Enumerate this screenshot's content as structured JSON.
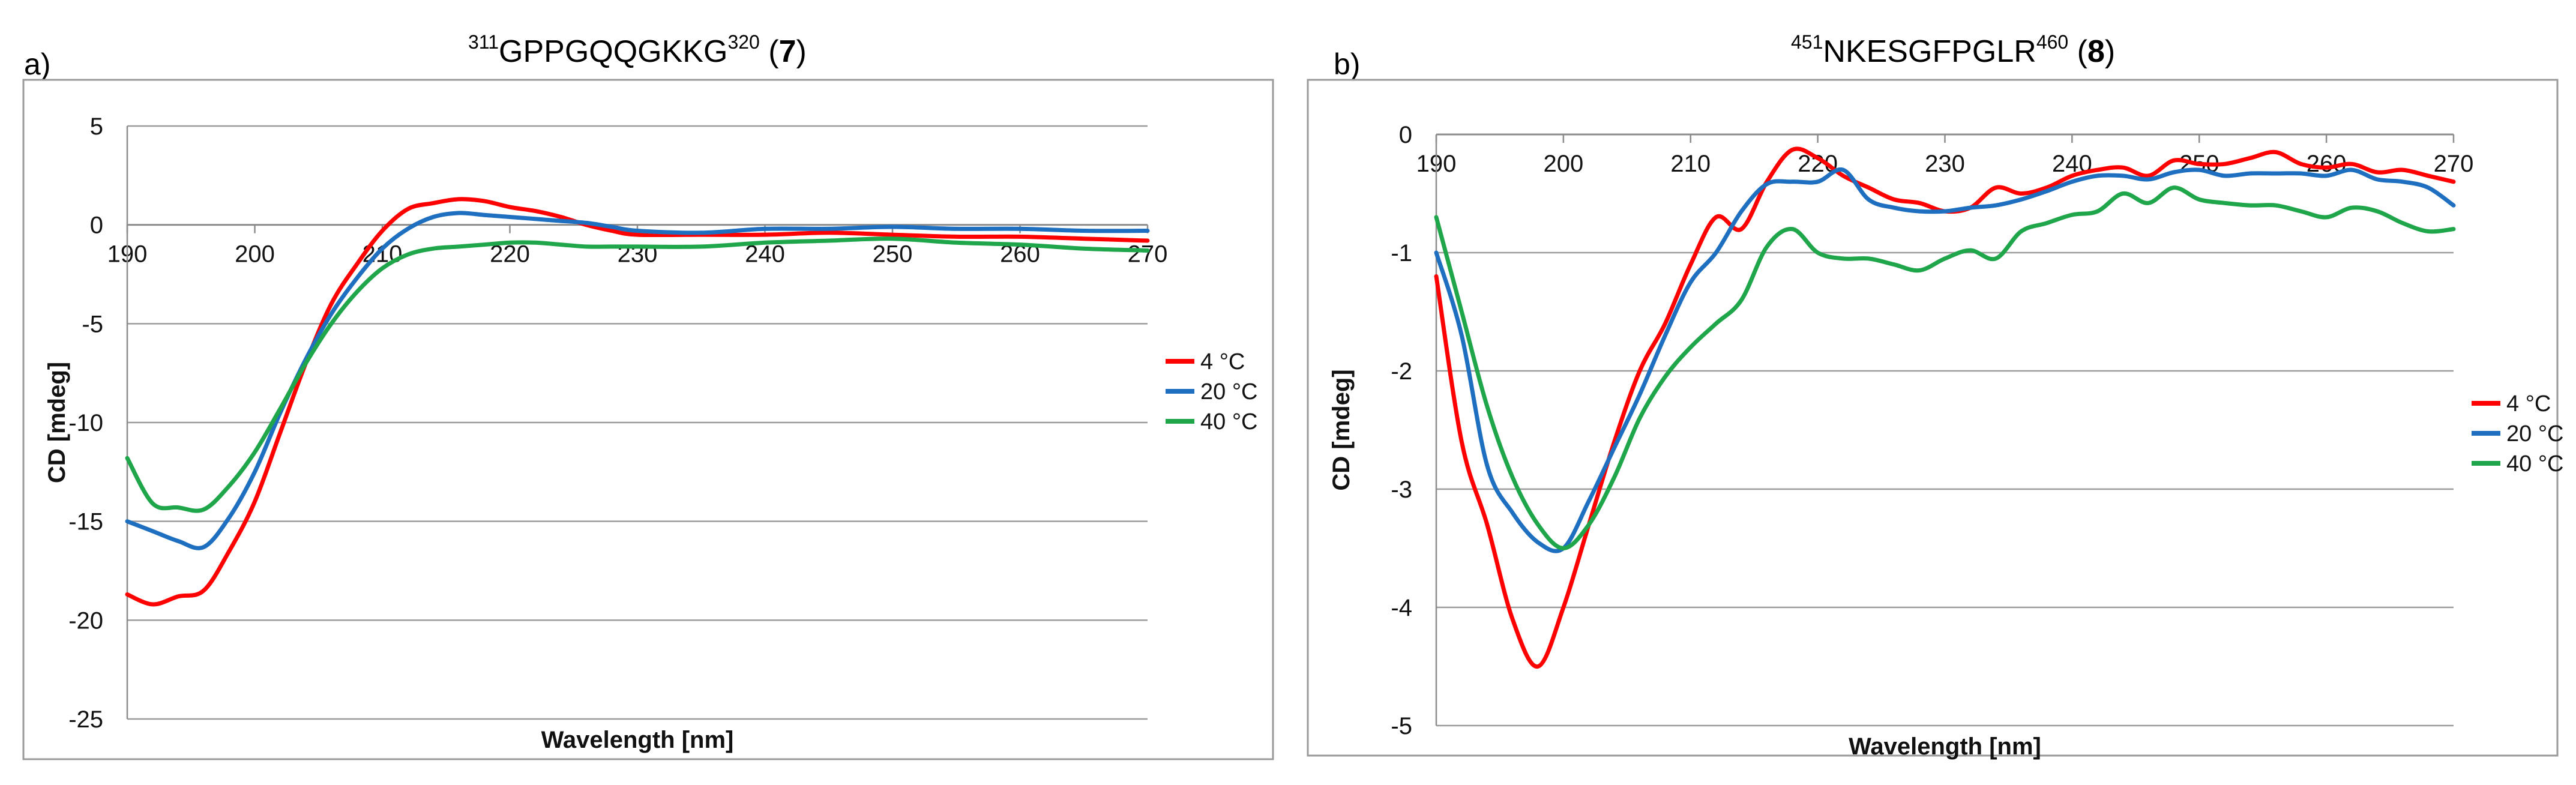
{
  "charts": [
    {
      "panel": "a)",
      "title": {
        "sup1": "311",
        "seq": "GPPGQQGKKG",
        "sup2": "320",
        "compound": "7"
      }
    },
    {
      "panel": "b)",
      "title": {
        "sup1": "451",
        "seq": "NKESGFPGLR",
        "sup2": "460",
        "compound": "8"
      }
    }
  ],
  "chart_data": [
    {
      "type": "line",
      "title": "311GPPGQQGKKG320 (7)",
      "xlabel": "Wavelength [nm]",
      "ylabel": "CD [mdeg]",
      "xlim": [
        190,
        270
      ],
      "ylim": [
        -25,
        5
      ],
      "xticks": [
        190,
        200,
        210,
        220,
        230,
        240,
        250,
        260,
        270
      ],
      "yticks": [
        5,
        0,
        -5,
        -10,
        -15,
        -20,
        -25
      ],
      "legend_position": "right",
      "series": [
        {
          "name": "4 °C",
          "color": "#ff0000",
          "x": [
            190,
            192,
            194,
            196,
            198,
            200,
            202,
            204,
            206,
            208,
            210,
            212,
            214,
            216,
            218,
            220,
            222,
            224,
            226,
            228,
            230,
            235,
            240,
            245,
            250,
            255,
            260,
            265,
            270
          ],
          "y": [
            -18.7,
            -19.2,
            -18.8,
            -18.5,
            -16.5,
            -14,
            -10.5,
            -7,
            -4,
            -2,
            -0.3,
            0.8,
            1.1,
            1.3,
            1.2,
            0.9,
            0.7,
            0.4,
            0,
            -0.3,
            -0.5,
            -0.5,
            -0.5,
            -0.4,
            -0.5,
            -0.6,
            -0.6,
            -0.7,
            -0.8
          ]
        },
        {
          "name": "20 °C",
          "color": "#1f6fc0",
          "x": [
            190,
            192,
            194,
            196,
            198,
            200,
            202,
            204,
            206,
            208,
            210,
            212,
            214,
            216,
            218,
            220,
            222,
            224,
            226,
            228,
            230,
            235,
            240,
            245,
            250,
            255,
            260,
            265,
            270
          ],
          "y": [
            -15,
            -15.5,
            -16,
            -16.3,
            -14.8,
            -12.5,
            -9.5,
            -6.8,
            -4.5,
            -2.7,
            -1.2,
            -0.2,
            0.4,
            0.6,
            0.5,
            0.4,
            0.3,
            0.2,
            0.1,
            -0.1,
            -0.3,
            -0.4,
            -0.2,
            -0.2,
            -0.1,
            -0.2,
            -0.2,
            -0.3,
            -0.3
          ]
        },
        {
          "name": "40 °C",
          "color": "#1fa64a",
          "x": [
            190,
            192,
            194,
            196,
            198,
            200,
            202,
            204,
            206,
            208,
            210,
            212,
            214,
            216,
            218,
            220,
            222,
            224,
            226,
            228,
            230,
            235,
            240,
            245,
            250,
            255,
            260,
            265,
            270
          ],
          "y": [
            -11.8,
            -14.1,
            -14.3,
            -14.4,
            -13.2,
            -11.5,
            -9.3,
            -7,
            -5,
            -3.4,
            -2.2,
            -1.5,
            -1.2,
            -1.1,
            -1,
            -0.9,
            -0.9,
            -1,
            -1.1,
            -1.1,
            -1.1,
            -1.1,
            -0.9,
            -0.8,
            -0.7,
            -0.9,
            -1,
            -1.2,
            -1.3
          ]
        }
      ]
    },
    {
      "type": "line",
      "title": "451NKESGFPGLR460 (8)",
      "xlabel": "Wavelength [nm]",
      "ylabel": "CD [mdeg]",
      "xlim": [
        190,
        270
      ],
      "ylim": [
        -5,
        0
      ],
      "xticks": [
        190,
        200,
        210,
        220,
        230,
        240,
        250,
        260,
        270
      ],
      "yticks": [
        0,
        -1,
        -2,
        -3,
        -4,
        -5
      ],
      "legend_position": "right",
      "series": [
        {
          "name": "4 °C",
          "color": "#ff0000",
          "x": [
            190,
            192,
            194,
            196,
            198,
            200,
            202,
            204,
            206,
            208,
            210,
            212,
            214,
            216,
            218,
            220,
            222,
            224,
            226,
            228,
            230,
            232,
            234,
            236,
            238,
            240,
            242,
            244,
            246,
            248,
            250,
            252,
            254,
            256,
            258,
            260,
            262,
            264,
            266,
            268,
            270
          ],
          "y": [
            -1.2,
            -2.6,
            -3.3,
            -4.1,
            -4.5,
            -4,
            -3.3,
            -2.6,
            -2,
            -1.6,
            -1.1,
            -0.7,
            -0.8,
            -0.4,
            -0.13,
            -0.2,
            -0.35,
            -0.45,
            -0.55,
            -0.58,
            -0.65,
            -0.62,
            -0.45,
            -0.5,
            -0.45,
            -0.35,
            -0.3,
            -0.28,
            -0.35,
            -0.22,
            -0.25,
            -0.25,
            -0.2,
            -0.15,
            -0.25,
            -0.28,
            -0.25,
            -0.32,
            -0.3,
            -0.35,
            -0.4
          ]
        },
        {
          "name": "20 °C",
          "color": "#1f6fc0",
          "x": [
            190,
            192,
            194,
            196,
            198,
            200,
            202,
            204,
            206,
            208,
            210,
            212,
            214,
            216,
            218,
            220,
            222,
            224,
            226,
            228,
            230,
            232,
            234,
            236,
            238,
            240,
            242,
            244,
            246,
            248,
            250,
            252,
            254,
            256,
            258,
            260,
            262,
            264,
            266,
            268,
            270
          ],
          "y": [
            -1,
            -1.7,
            -2.8,
            -3.2,
            -3.45,
            -3.5,
            -3.1,
            -2.65,
            -2.2,
            -1.7,
            -1.25,
            -1,
            -0.65,
            -0.42,
            -0.4,
            -0.4,
            -0.3,
            -0.55,
            -0.62,
            -0.65,
            -0.65,
            -0.62,
            -0.6,
            -0.55,
            -0.48,
            -0.4,
            -0.35,
            -0.35,
            -0.38,
            -0.32,
            -0.3,
            -0.35,
            -0.33,
            -0.33,
            -0.33,
            -0.35,
            -0.3,
            -0.38,
            -0.4,
            -0.45,
            -0.6
          ]
        },
        {
          "name": "40 °C",
          "color": "#1fa64a",
          "x": [
            190,
            192,
            194,
            196,
            198,
            200,
            202,
            204,
            206,
            208,
            210,
            212,
            214,
            216,
            218,
            220,
            222,
            224,
            226,
            228,
            230,
            232,
            234,
            236,
            238,
            240,
            242,
            244,
            246,
            248,
            250,
            252,
            254,
            256,
            258,
            260,
            262,
            264,
            266,
            268,
            270
          ],
          "y": [
            -0.7,
            -1.5,
            -2.3,
            -2.9,
            -3.3,
            -3.5,
            -3.3,
            -2.9,
            -2.4,
            -2.05,
            -1.8,
            -1.6,
            -1.4,
            -0.95,
            -0.8,
            -1,
            -1.05,
            -1.05,
            -1.1,
            -1.15,
            -1.05,
            -0.98,
            -1.05,
            -0.82,
            -0.75,
            -0.68,
            -0.65,
            -0.5,
            -0.58,
            -0.45,
            -0.55,
            -0.58,
            -0.6,
            -0.6,
            -0.65,
            -0.7,
            -0.62,
            -0.65,
            -0.75,
            -0.82,
            -0.8
          ]
        }
      ]
    }
  ]
}
